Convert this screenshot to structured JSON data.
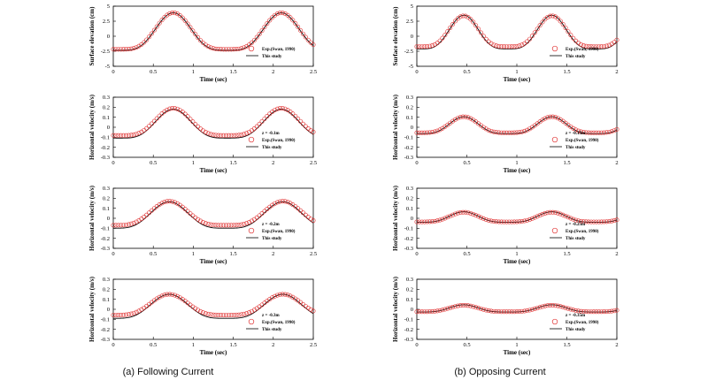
{
  "chart_data": [
    {
      "type": "line",
      "panel": "a1",
      "xlabel": "Time (sec)",
      "ylabel": "Surface elevation (cm)",
      "xlim": [
        0,
        2.5
      ],
      "xticks": [
        "0",
        "0.5",
        "1",
        "1.5",
        "2",
        "2.5"
      ],
      "ylim": [
        -5,
        5
      ],
      "yticks": [
        "-5",
        "-2.5",
        "0",
        "2.5",
        "5"
      ],
      "period": 1.35,
      "peak_time": 0.75,
      "amp_this_study": 3.9,
      "amp_exp": 3.8,
      "exp_offset": 0.1,
      "legend": {
        "depth": "",
        "exp": "Exp.(Swan, 1990)",
        "model": "This study"
      },
      "series": [
        {
          "name": "Exp.(Swan, 1990)",
          "style": "circles",
          "color": "#e03030"
        },
        {
          "name": "This study",
          "style": "line",
          "color": "#000000"
        }
      ]
    },
    {
      "type": "line",
      "panel": "a2",
      "xlabel": "Time (sec)",
      "ylabel": "Horizontal velocity (m/s)",
      "xlim": [
        0,
        2.5
      ],
      "xticks": [
        "0",
        "0.5",
        "1",
        "1.5",
        "2",
        "2.5"
      ],
      "ylim": [
        -0.3,
        0.3
      ],
      "yticks": [
        "-0.3",
        "-0.2",
        "-0.1",
        "0",
        "0.1",
        "0.2",
        "0.3"
      ],
      "period": 1.35,
      "peak_time": 0.75,
      "amp_this_study": 0.18,
      "amp_exp": 0.17,
      "exp_offset": 0.02,
      "legend": {
        "depth": "z = -0.1m",
        "exp": "Exp.(Swan, 1990)",
        "model": "This study"
      },
      "series": [
        {
          "name": "Exp.(Swan, 1990)",
          "style": "circles",
          "color": "#e03030"
        },
        {
          "name": "This study",
          "style": "line",
          "color": "#000000"
        }
      ]
    },
    {
      "type": "line",
      "panel": "a3",
      "xlabel": "Time (sec)",
      "ylabel": "Horizontal velocity (m/s)",
      "xlim": [
        0,
        2.5
      ],
      "xticks": [
        "0",
        "0.5",
        "1",
        "1.5",
        "2",
        "2.5"
      ],
      "ylim": [
        -0.3,
        0.3
      ],
      "yticks": [
        "-0.3",
        "-0.2",
        "-0.1",
        "0",
        "0.1",
        "0.2",
        "0.3"
      ],
      "period": 1.42,
      "peak_time": 0.7,
      "amp_this_study": 0.165,
      "amp_exp": 0.15,
      "exp_offset": 0.02,
      "legend": {
        "depth": "z = -0.2m",
        "exp": "Exp.(Swan, 1990)",
        "model": "This study"
      },
      "series": [
        {
          "name": "Exp.(Swan, 1990)",
          "style": "circles",
          "color": "#e03030"
        },
        {
          "name": "This study",
          "style": "line",
          "color": "#000000"
        }
      ]
    },
    {
      "type": "line",
      "panel": "a4",
      "xlabel": "Time (sec)",
      "ylabel": "Horizontal velocity (m/s)",
      "xlim": [
        0,
        2.5
      ],
      "xticks": [
        "0",
        "0.5",
        "1",
        "1.5",
        "2",
        "2.5"
      ],
      "ylim": [
        -0.3,
        0.3
      ],
      "yticks": [
        "-0.3",
        "-0.2",
        "-0.1",
        "0",
        "0.1",
        "0.2",
        "0.3"
      ],
      "period": 1.42,
      "peak_time": 0.7,
      "amp_this_study": 0.15,
      "amp_exp": 0.13,
      "exp_offset": 0.02,
      "legend": {
        "depth": "z = -0.3m",
        "exp": "Exp.(Swan, 1990)",
        "model": "This study"
      },
      "series": [
        {
          "name": "Exp.(Swan, 1990)",
          "style": "circles",
          "color": "#e03030"
        },
        {
          "name": "This study",
          "style": "line",
          "color": "#000000"
        }
      ]
    },
    {
      "type": "line",
      "panel": "b1",
      "xlabel": "Time (sec)",
      "ylabel": "Surface elevation (cm)",
      "xlim": [
        0,
        2
      ],
      "xticks": [
        "0",
        "0.5",
        "1",
        "1.5",
        "2"
      ],
      "ylim": [
        -5,
        5
      ],
      "yticks": [
        "-5",
        "-2.5",
        "0",
        "2.5",
        "5"
      ],
      "period": 0.88,
      "peak_time": 0.47,
      "amp_this_study": 3.5,
      "amp_exp": 3.2,
      "exp_offset": 0.2,
      "legend": {
        "depth": "",
        "exp": "Exp.(Swan, 1990)",
        "model": "This study"
      },
      "series": [
        {
          "name": "Exp.(Swan, 1990)",
          "style": "circles",
          "color": "#e03030"
        },
        {
          "name": "This study",
          "style": "line",
          "color": "#000000"
        }
      ]
    },
    {
      "type": "line",
      "panel": "b2",
      "xlabel": "Time (sec)",
      "ylabel": "Horizontal velocity (m/s)",
      "xlim": [
        0,
        2
      ],
      "xticks": [
        "0",
        "0.5",
        "1",
        "1.5",
        "2"
      ],
      "ylim": [
        -0.3,
        0.3
      ],
      "yticks": [
        "-0.3",
        "-0.2",
        "-0.1",
        "0",
        "0.1",
        "0.2",
        "0.3"
      ],
      "period": 0.88,
      "peak_time": 0.47,
      "amp_this_study": 0.105,
      "amp_exp": 0.1,
      "exp_offset": 0.005,
      "legend": {
        "depth": "z = -0.15m",
        "exp": "Exp.(Swan, 1990)",
        "model": "This study"
      },
      "series": [
        {
          "name": "Exp.(Swan, 1990)",
          "style": "circles",
          "color": "#e03030"
        },
        {
          "name": "This study",
          "style": "line",
          "color": "#000000"
        }
      ]
    },
    {
      "type": "line",
      "panel": "b3",
      "xlabel": "Time (sec)",
      "ylabel": "Horizontal velocity (m/s)",
      "xlim": [
        0,
        2
      ],
      "xticks": [
        "0",
        "0.5",
        "1",
        "1.5",
        "2"
      ],
      "ylim": [
        -0.3,
        0.3
      ],
      "yticks": [
        "-0.3",
        "-0.2",
        "-0.1",
        "0",
        "0.1",
        "0.2",
        "0.3"
      ],
      "period": 0.88,
      "peak_time": 0.47,
      "amp_this_study": 0.065,
      "amp_exp": 0.06,
      "exp_offset": 0.0,
      "legend": {
        "depth": "z = -0.25m",
        "exp": "Exp.(Swan, 1990)",
        "model": "This study"
      },
      "series": [
        {
          "name": "Exp.(Swan, 1990)",
          "style": "circles",
          "color": "#e03030"
        },
        {
          "name": "This study",
          "style": "line",
          "color": "#000000"
        }
      ]
    },
    {
      "type": "line",
      "panel": "b4",
      "xlabel": "Time (sec)",
      "ylabel": "Horizontal velocity (m/s)",
      "xlim": [
        0,
        2
      ],
      "xticks": [
        "0",
        "0.5",
        "1",
        "1.5",
        "2"
      ],
      "ylim": [
        -0.3,
        0.3
      ],
      "yticks": [
        "-0.3",
        "-0.2",
        "-0.1",
        "0",
        "0.1",
        "0.2",
        "0.3"
      ],
      "period": 0.88,
      "peak_time": 0.47,
      "amp_this_study": 0.045,
      "amp_exp": 0.04,
      "exp_offset": 0.0,
      "legend": {
        "depth": "z = -0.35m",
        "exp": "Exp.(Swan, 1990)",
        "model": "This study"
      },
      "series": [
        {
          "name": "Exp.(Swan, 1990)",
          "style": "circles",
          "color": "#e03030"
        },
        {
          "name": "This study",
          "style": "line",
          "color": "#000000"
        }
      ]
    }
  ],
  "captions": {
    "left": "(a) Following Current",
    "right": "(b) Opposing Current"
  }
}
